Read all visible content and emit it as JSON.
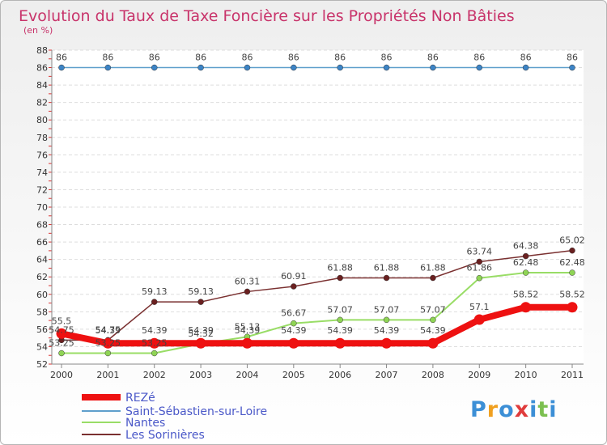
{
  "chart_data": {
    "type": "line",
    "title": "Evolution du Taux de Taxe Foncière sur les Propriétés Non Bâties",
    "subtitle": "(en %)",
    "xlabel": "",
    "ylabel": "",
    "categories": [
      "2000",
      "2001",
      "2002",
      "2003",
      "2004",
      "2005",
      "2006",
      "2007",
      "2008",
      "2009",
      "2010",
      "2011"
    ],
    "ylim": [
      52,
      88
    ],
    "yticks": [
      52,
      54,
      56,
      58,
      60,
      62,
      64,
      66,
      68,
      70,
      72,
      74,
      76,
      78,
      80,
      82,
      84,
      86,
      88
    ],
    "grid": "horizontal",
    "legend_position": "bottom-left",
    "series": [
      {
        "name": "REZé",
        "color": "#ee1111",
        "values": [
          55.5,
          54.39,
          54.39,
          54.39,
          54.39,
          54.39,
          54.39,
          54.39,
          54.39,
          57.1,
          58.52,
          58.52
        ],
        "labels": [
          "55.5",
          "54.39",
          "54.39",
          "54.39",
          "54.39",
          "54.39",
          "54.39",
          "54.39",
          "54.39",
          "57.1",
          "58.52",
          "58.52"
        ]
      },
      {
        "name": "Saint-Sébastien-sur-Loire",
        "color": "#5f9fcc",
        "values": [
          86,
          86,
          86,
          86,
          86,
          86,
          86,
          86,
          86,
          86,
          86,
          86
        ],
        "labels": [
          "86",
          "86",
          "86",
          "86",
          "86",
          "86",
          "86",
          "86",
          "86",
          "86",
          "86",
          "86"
        ]
      },
      {
        "name": "Nantes",
        "color": "#99dd66",
        "values": [
          53.25,
          53.25,
          53.25,
          54.32,
          55.13,
          56.67,
          57.07,
          57.07,
          57.07,
          61.86,
          62.48,
          62.48
        ],
        "labels": [
          "53.25",
          "53.25",
          "53.25",
          "54.32",
          "55.13",
          "56.67",
          "57.07",
          "57.07",
          "57.07",
          "61.86",
          "62.48",
          "62.48"
        ]
      },
      {
        "name": "Les Sorinières",
        "color": "#7a3030",
        "values": [
          54.75,
          54.75,
          59.13,
          59.13,
          60.31,
          60.91,
          61.88,
          61.88,
          61.88,
          63.74,
          64.38,
          65.02
        ],
        "labels": [
          "54.75",
          "54.75",
          "59.13",
          "59.13",
          "60.31",
          "60.91",
          "61.88",
          "61.88",
          "61.88",
          "63.74",
          "64.38",
          "65.02"
        ]
      }
    ]
  },
  "logo": {
    "letters": [
      "P",
      "r",
      "o",
      "x",
      "i",
      "t",
      "i"
    ],
    "colors": [
      "#3c8fd6",
      "#f0a020",
      "#3c8fd6",
      "#e03c3c",
      "#3c8fd6",
      "#7cc050",
      "#3c8fd6"
    ]
  }
}
